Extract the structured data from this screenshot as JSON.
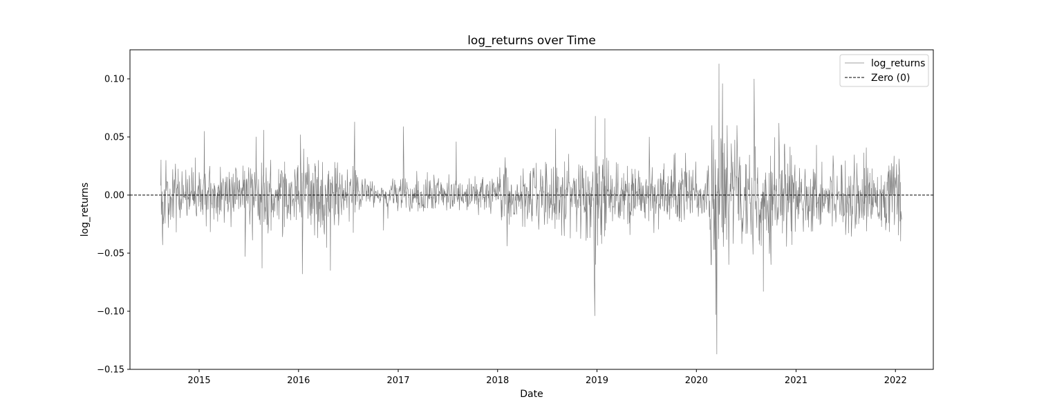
{
  "chart_data": {
    "type": "line",
    "title": "log_returns over Time",
    "xlabel": "Date",
    "ylabel": "log_returns",
    "xlim": [
      "2014-04-22",
      "2022-05-20"
    ],
    "ylim": [
      -0.15,
      0.125
    ],
    "x_ticks": [
      "2015",
      "2016",
      "2017",
      "2018",
      "2019",
      "2020",
      "2021",
      "2022"
    ],
    "y_ticks": [
      "0.10",
      "0.05",
      "0.00",
      "−0.05",
      "−0.10",
      "−0.15"
    ],
    "y_tick_values": [
      0.1,
      0.05,
      0.0,
      -0.05,
      -0.1,
      -0.15
    ],
    "grid": false,
    "legend_position": "top-right",
    "series": [
      {
        "name": "log_returns",
        "color": "#808080",
        "x_start": "2014-08-13",
        "x_end": "2022-01-24",
        "frequency": "daily (trading days)",
        "values_note": "dense daily noise around zero; key observed extremes below",
        "points": [
          {
            "x": "2014-08-20",
            "y": -0.043
          },
          {
            "x": "2014-09-01",
            "y": 0.03
          },
          {
            "x": "2015-01-20",
            "y": 0.055
          },
          {
            "x": "2015-06-20",
            "y": -0.053
          },
          {
            "x": "2015-08-20",
            "y": -0.063
          },
          {
            "x": "2015-08-26",
            "y": 0.056
          },
          {
            "x": "2016-01-08",
            "y": 0.052
          },
          {
            "x": "2016-01-15",
            "y": -0.068
          },
          {
            "x": "2016-04-27",
            "y": -0.065
          },
          {
            "x": "2016-07-25",
            "y": 0.063
          },
          {
            "x": "2017-01-20",
            "y": 0.059
          },
          {
            "x": "2017-08-02",
            "y": 0.046
          },
          {
            "x": "2018-02-05",
            "y": -0.044
          },
          {
            "x": "2018-08-02",
            "y": 0.057
          },
          {
            "x": "2018-12-24",
            "y": -0.104
          },
          {
            "x": "2018-12-26",
            "y": 0.068
          },
          {
            "x": "2019-01-30",
            "y": 0.066
          },
          {
            "x": "2020-03-12",
            "y": -0.103
          },
          {
            "x": "2020-03-16",
            "y": -0.137
          },
          {
            "x": "2020-03-24",
            "y": 0.113
          },
          {
            "x": "2020-04-06",
            "y": 0.096
          },
          {
            "x": "2020-07-31",
            "y": 0.1
          },
          {
            "x": "2020-09-03",
            "y": -0.083
          },
          {
            "x": "2020-10-30",
            "y": 0.062
          },
          {
            "x": "2022-01-24",
            "y": -0.021
          }
        ]
      },
      {
        "name": "Zero (0)",
        "color": "#000000",
        "style": "dashed",
        "y": 0.0
      }
    ]
  }
}
